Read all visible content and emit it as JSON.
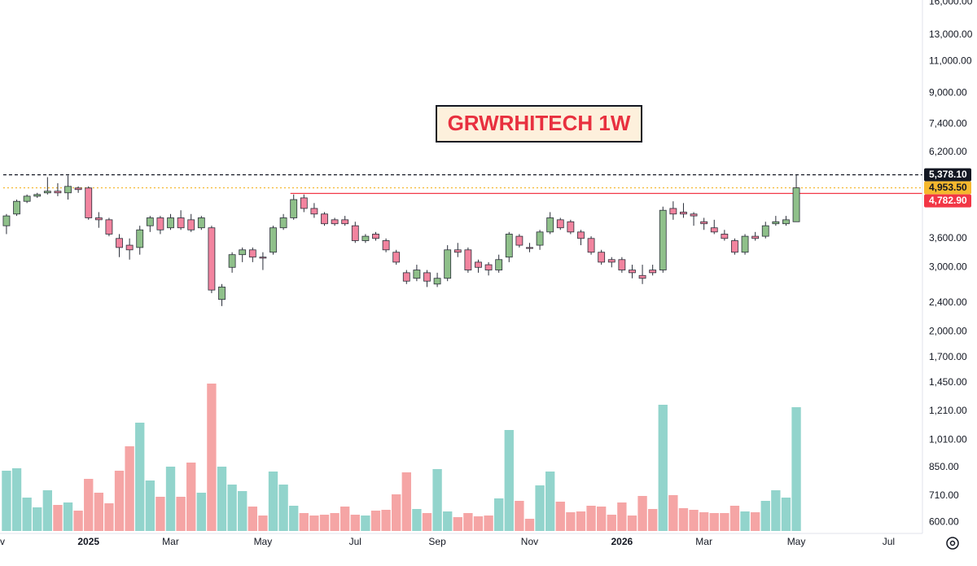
{
  "chart_data": {
    "type": "candlestick",
    "title": "GRWRHITECH 1W",
    "log_scale": true,
    "open": [
      3900,
      4200,
      4550,
      4700,
      4800,
      4850,
      4800,
      4950,
      4950,
      4100,
      4050,
      3600,
      3450,
      3400,
      3900,
      4100,
      3850,
      4100,
      4050,
      3850,
      3850,
      2450,
      3000,
      3250,
      3350,
      3200,
      3300,
      3850,
      4100,
      4650,
      4350,
      4200,
      4050,
      4050,
      3900,
      3550,
      3700,
      3550,
      3300,
      2900,
      2800,
      2900,
      2700,
      2800,
      3350,
      3350,
      3100,
      3050,
      2950,
      3200,
      3650,
      3400,
      3450,
      3750,
      4050,
      4000,
      3750,
      3600,
      3300,
      3150,
      3150,
      2950,
      2850,
      2950,
      2950,
      4350,
      4250,
      4200,
      4000,
      3850,
      3700,
      3550,
      3300,
      3650,
      3650,
      3950,
      3950,
      4000
    ],
    "high": [
      4200,
      4600,
      4750,
      4800,
      5300,
      5100,
      5350,
      5000,
      5000,
      4250,
      4100,
      3700,
      3600,
      3900,
      4150,
      4150,
      4200,
      4300,
      4200,
      4150,
      3900,
      2700,
      3300,
      3400,
      3400,
      3300,
      3900,
      4200,
      4750,
      4750,
      4500,
      4250,
      4100,
      4150,
      4000,
      3700,
      3750,
      3600,
      3350,
      2950,
      3050,
      2950,
      2900,
      3450,
      3500,
      3400,
      3150,
      3100,
      3250,
      3750,
      3700,
      3500,
      3800,
      4250,
      4100,
      4050,
      3800,
      3650,
      3350,
      3200,
      3200,
      3050,
      3050,
      3050,
      4400,
      4550,
      4500,
      4250,
      4100,
      4050,
      3800,
      3600,
      3700,
      3750,
      4000,
      4150,
      4150,
      5378.1
    ],
    "low": [
      3700,
      4150,
      4500,
      4650,
      4750,
      4700,
      4600,
      4800,
      4050,
      3850,
      3650,
      3200,
      3150,
      3250,
      3750,
      3700,
      3800,
      3800,
      3750,
      3800,
      2550,
      2350,
      2900,
      3100,
      3100,
      2950,
      3250,
      3800,
      4050,
      4250,
      4100,
      3900,
      3900,
      3900,
      3500,
      3500,
      3550,
      3300,
      3050,
      2700,
      2750,
      2650,
      2650,
      2750,
      3200,
      2900,
      2900,
      2850,
      2900,
      3100,
      3400,
      3300,
      3350,
      3700,
      3800,
      3700,
      3450,
      3250,
      3050,
      3000,
      2900,
      2800,
      2700,
      2850,
      2900,
      4050,
      4100,
      3900,
      3800,
      3700,
      3550,
      3250,
      3250,
      3550,
      3600,
      3900,
      3900,
      4000
    ],
    "close": [
      4150,
      4550,
      4700,
      4750,
      4850,
      4800,
      5000,
      4900,
      4100,
      4050,
      3700,
      3400,
      3350,
      3800,
      4100,
      3800,
      4100,
      3850,
      3800,
      4100,
      2600,
      2650,
      3250,
      3350,
      3200,
      3180,
      3850,
      4100,
      4600,
      4350,
      4200,
      3950,
      3950,
      3950,
      3550,
      3650,
      3600,
      3350,
      3100,
      2750,
      2950,
      2750,
      2800,
      3350,
      3300,
      2950,
      3000,
      2950,
      3150,
      3700,
      3450,
      3380,
      3750,
      4100,
      3850,
      3750,
      3600,
      3300,
      3100,
      3100,
      2950,
      2900,
      2800,
      2900,
      4300,
      4200,
      4200,
      4150,
      3950,
      3750,
      3600,
      3300,
      3650,
      3600,
      3900,
      4000,
      4050,
      4953.5
    ],
    "volume": [
      74,
      77,
      41,
      29,
      50,
      32,
      35,
      25,
      64,
      47,
      34,
      74,
      104,
      133,
      62,
      42,
      79,
      42,
      84,
      47,
      181,
      79,
      57,
      49,
      30,
      19,
      73,
      57,
      31,
      22,
      19,
      20,
      22,
      30,
      20,
      19,
      25,
      26,
      45,
      72,
      27,
      22,
      76,
      24,
      17,
      22,
      18,
      19,
      40,
      124,
      37,
      15,
      56,
      73,
      36,
      23,
      24,
      31,
      30,
      20,
      35,
      19,
      43,
      27,
      155,
      44,
      28,
      26,
      23,
      22,
      22,
      31,
      24,
      23,
      37,
      50,
      41,
      152
    ],
    "up_color": "#8fc08a",
    "down_color": "#f2849f",
    "volume_up_color": "#92d4cc",
    "volume_down_color": "#f5a5a5",
    "ylim": [
      560,
      16200
    ],
    "yticks": [
      {
        "value": 16000,
        "label": "16,000.00"
      },
      {
        "value": 13000,
        "label": "13,000.00"
      },
      {
        "value": 11000,
        "label": "11,000.00"
      },
      {
        "value": 9000,
        "label": "9,000.00"
      },
      {
        "value": 7400,
        "label": "7,400.00"
      },
      {
        "value": 6200,
        "label": "6,200.00"
      },
      {
        "value": 3600,
        "label": "3,600.00"
      },
      {
        "value": 3000,
        "label": "3,000.00"
      },
      {
        "value": 2400,
        "label": "2,400.00"
      },
      {
        "value": 2000,
        "label": "2,000.00"
      },
      {
        "value": 1700,
        "label": "1,700.00"
      },
      {
        "value": 1450,
        "label": "1,450.00"
      },
      {
        "value": 1210,
        "label": "1,210.00"
      },
      {
        "value": 1010,
        "label": "1,010.00"
      },
      {
        "value": 850,
        "label": "850.00"
      },
      {
        "value": 710,
        "label": "710.00"
      },
      {
        "value": 600,
        "label": "600.00"
      }
    ],
    "xlim": [
      -0.63,
      89.3
    ],
    "xticks": [
      {
        "value": -1,
        "label": "Nov"
      },
      {
        "value": 8,
        "label": "2025"
      },
      {
        "value": 16,
        "label": "Mar"
      },
      {
        "value": 25,
        "label": "May"
      },
      {
        "value": 34,
        "label": "Jul"
      },
      {
        "value": 42,
        "label": "Sep"
      },
      {
        "value": 51,
        "label": "Nov"
      },
      {
        "value": 60,
        "label": "2026"
      },
      {
        "value": 68,
        "label": "Mar"
      },
      {
        "value": 77,
        "label": "May"
      },
      {
        "value": 86,
        "label": "Jul"
      }
    ],
    "levels": [
      {
        "value": 5378.1,
        "label": "5,378.10",
        "color": "#131722",
        "text_color": "#ffffff",
        "style": "dashed",
        "from_index": 0
      },
      {
        "value": 4953.5,
        "label": "4,953.50",
        "color": "#f5b82e",
        "text_color": "#131722",
        "style": "dotted",
        "from_index": 0
      },
      {
        "value": 4782.9,
        "label": "4,782.90",
        "color": "#f23645",
        "text_color": "#ffffff",
        "style": "solid",
        "from_index": 28
      }
    ]
  }
}
